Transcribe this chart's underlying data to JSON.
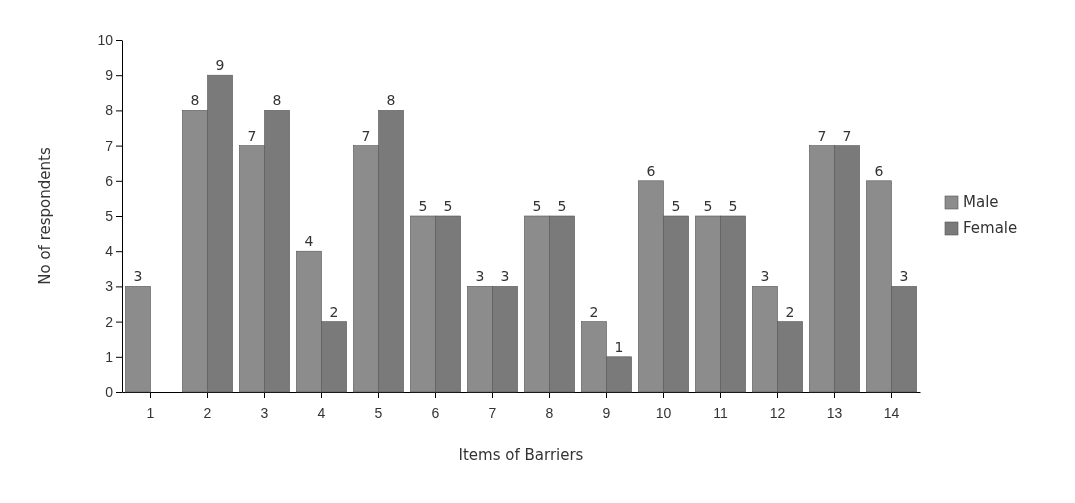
{
  "chart_data": {
    "type": "bar",
    "xlabel": "Items of Barriers",
    "ylabel": "No of respondents",
    "categories": [
      "1",
      "2",
      "3",
      "4",
      "5",
      "6",
      "7",
      "8",
      "9",
      "10",
      "11",
      "12",
      "13",
      "14"
    ],
    "series": [
      {
        "name": "Male",
        "color": "#8c8c8c",
        "values": [
          3,
          8,
          7,
          4,
          7,
          5,
          3,
          5,
          2,
          6,
          5,
          3,
          7,
          6
        ]
      },
      {
        "name": "Female",
        "color": "#7a7a7a",
        "values": [
          null,
          9,
          8,
          2,
          8,
          5,
          3,
          5,
          1,
          5,
          5,
          2,
          7,
          3
        ]
      }
    ],
    "ylim": [
      0,
      10
    ],
    "yticks": [
      0,
      1,
      2,
      3,
      4,
      5,
      6,
      7,
      8,
      9,
      10
    ],
    "data_labels": true,
    "legend": "right",
    "grid": false
  }
}
